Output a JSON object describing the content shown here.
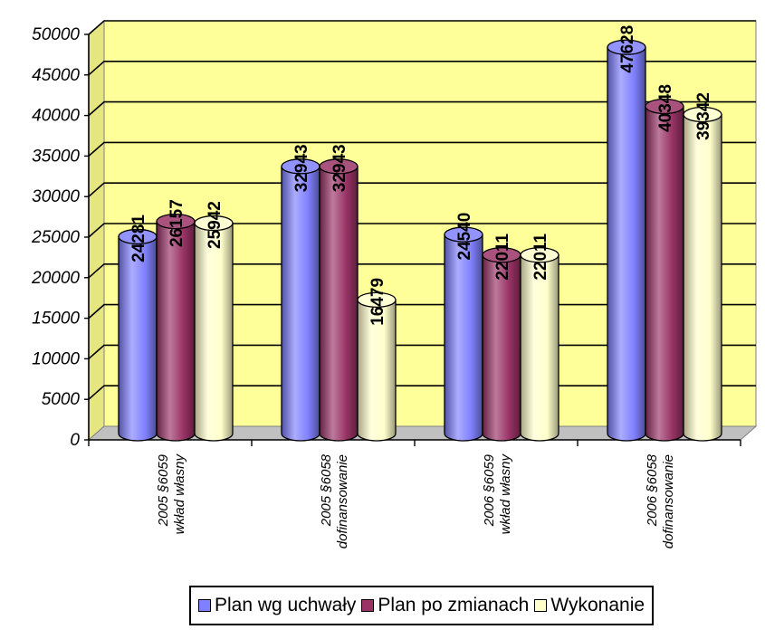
{
  "chart_data": {
    "type": "bar",
    "style": "3d-cylinder",
    "categories": [
      [
        "2005 §6059",
        "wkład własny"
      ],
      [
        "2005 §6058",
        "dofinansowanie"
      ],
      [
        "2006 §6059",
        "wkład własny"
      ],
      [
        "2006 §6058",
        "dofinansowanie"
      ]
    ],
    "series": [
      {
        "name": "Plan wg uchwały",
        "values": [
          24281,
          32943,
          24540,
          47628
        ],
        "labels": [
          "24281",
          "32943",
          "24540",
          "47628"
        ],
        "color": "#8080ff"
      },
      {
        "name": "Plan po zmianach",
        "values": [
          26157,
          32943,
          22011,
          40348
        ],
        "labels": [
          "26157",
          "32943",
          "22011",
          "40348"
        ],
        "color": "#993366"
      },
      {
        "name": "Wykonanie",
        "values": [
          25942,
          16479,
          22011,
          39342
        ],
        "labels": [
          "25942",
          "16479",
          "22011",
          "39342"
        ],
        "color": "#ffffcc"
      }
    ],
    "ylim": [
      0,
      50000
    ],
    "yticks": [
      "0",
      "5000",
      "10000",
      "15000",
      "20000",
      "25000",
      "30000",
      "35000",
      "40000",
      "45000",
      "50000"
    ],
    "grid": true,
    "plot_background": "#ffff99",
    "legend_position": "bottom"
  }
}
